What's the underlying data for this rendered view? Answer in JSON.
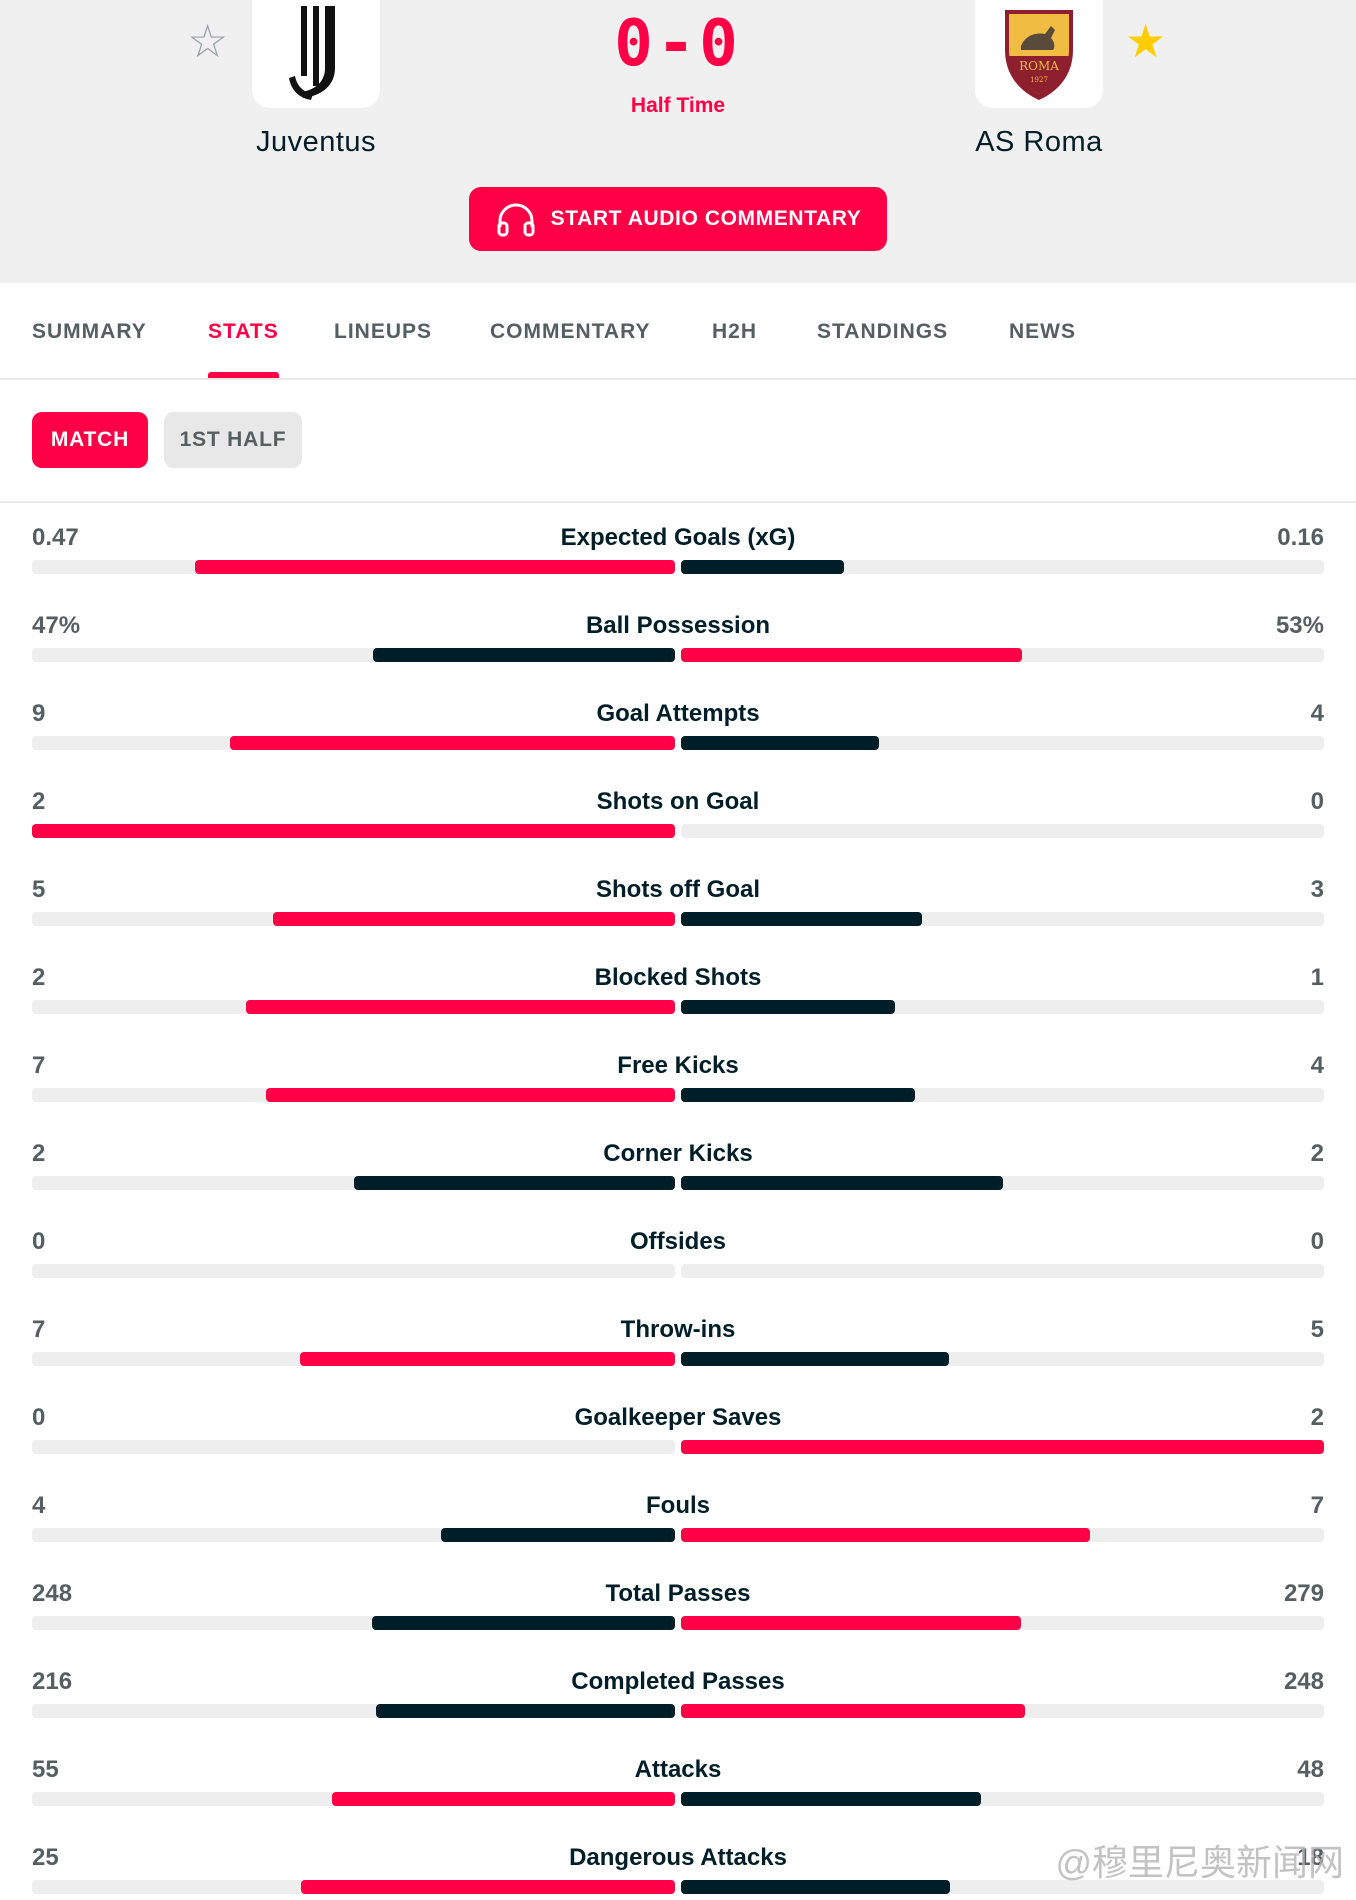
{
  "colors": {
    "accent": "#ff0046",
    "dark": "#001e28",
    "track": "#eeeeee",
    "star_active": "#ffcd00"
  },
  "match": {
    "home": {
      "name": "Juventus",
      "favorite": false
    },
    "away": {
      "name": "AS Roma",
      "favorite": true,
      "crest_text": "ROMA",
      "crest_year": "1927"
    },
    "score": "0-0",
    "status": "Half Time",
    "audio_button": "START AUDIO COMMENTARY"
  },
  "tabs": [
    {
      "label": "SUMMARY",
      "active": false
    },
    {
      "label": "STATS",
      "active": true
    },
    {
      "label": "LINEUPS",
      "active": false
    },
    {
      "label": "COMMENTARY",
      "active": false
    },
    {
      "label": "H2H",
      "active": false
    },
    {
      "label": "STANDINGS",
      "active": false
    },
    {
      "label": "NEWS",
      "active": false
    }
  ],
  "subtabs": [
    {
      "label": "MATCH",
      "active": true
    },
    {
      "label": "1ST HALF",
      "active": false
    }
  ],
  "stats": [
    {
      "name": "Expected Goals (xG)",
      "home": "0.47",
      "away": "0.16",
      "home_value": 0.47,
      "away_value": 0.16
    },
    {
      "name": "Ball Possession",
      "home": "47%",
      "away": "53%",
      "home_value": 47,
      "away_value": 53
    },
    {
      "name": "Goal Attempts",
      "home": "9",
      "away": "4",
      "home_value": 9,
      "away_value": 4
    },
    {
      "name": "Shots on Goal",
      "home": "2",
      "away": "0",
      "home_value": 2,
      "away_value": 0
    },
    {
      "name": "Shots off Goal",
      "home": "5",
      "away": "3",
      "home_value": 5,
      "away_value": 3
    },
    {
      "name": "Blocked Shots",
      "home": "2",
      "away": "1",
      "home_value": 2,
      "away_value": 1
    },
    {
      "name": "Free Kicks",
      "home": "7",
      "away": "4",
      "home_value": 7,
      "away_value": 4
    },
    {
      "name": "Corner Kicks",
      "home": "2",
      "away": "2",
      "home_value": 2,
      "away_value": 2
    },
    {
      "name": "Offsides",
      "home": "0",
      "away": "0",
      "home_value": 0,
      "away_value": 0
    },
    {
      "name": "Throw-ins",
      "home": "7",
      "away": "5",
      "home_value": 7,
      "away_value": 5
    },
    {
      "name": "Goalkeeper Saves",
      "home": "0",
      "away": "2",
      "home_value": 0,
      "away_value": 2
    },
    {
      "name": "Fouls",
      "home": "4",
      "away": "7",
      "home_value": 4,
      "away_value": 7
    },
    {
      "name": "Total Passes",
      "home": "248",
      "away": "279",
      "home_value": 248,
      "away_value": 279
    },
    {
      "name": "Completed Passes",
      "home": "216",
      "away": "248",
      "home_value": 216,
      "away_value": 248
    },
    {
      "name": "Attacks",
      "home": "55",
      "away": "48",
      "home_value": 55,
      "away_value": 48
    },
    {
      "name": "Dangerous Attacks",
      "home": "25",
      "away": "18",
      "home_value": 25,
      "away_value": 18
    }
  ],
  "watermark": "@穆里尼奥新闻网"
}
